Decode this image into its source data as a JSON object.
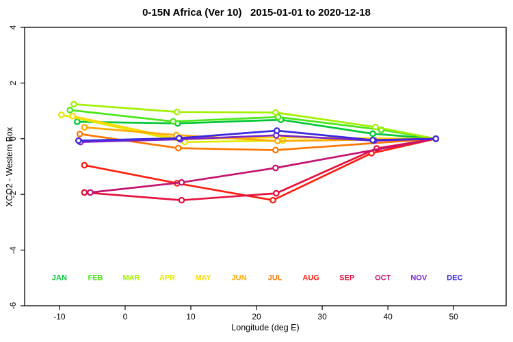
{
  "header": {
    "title": "0-15N Africa (Ver 10)   2015-01-01 to 2020-12-18"
  },
  "chart_data": {
    "type": "line",
    "title": "0-15N Africa (Ver 10)   2015-01-01 to 2020-12-18",
    "xlabel": "Longitude (deg E)",
    "ylabel": "XCO2 - Western Box",
    "x_ticks": [
      -10,
      0,
      10,
      20,
      30,
      40,
      50
    ],
    "y_ticks": [
      -6,
      -4,
      -2,
      0,
      2,
      4
    ],
    "xlim": [
      -15.3,
      58.0
    ],
    "ylim": [
      -6.0,
      4.0
    ],
    "grid": false,
    "marker_style": "open-circle",
    "legend": {
      "position": "bottom-inside",
      "y_value": -5.08,
      "start_x": -10.0,
      "step_x": 5.47
    },
    "series": [
      {
        "name": "JAN",
        "color": "#00C832",
        "points": [
          [
            -7.3,
            0.61
          ],
          [
            8.0,
            0.55
          ],
          [
            23.7,
            0.68
          ],
          [
            37.7,
            0.18
          ],
          [
            47.3,
            0.0
          ]
        ]
      },
      {
        "name": "FEB",
        "color": "#4BE619",
        "points": [
          [
            -8.4,
            1.03
          ],
          [
            7.3,
            0.62
          ],
          [
            23.3,
            0.78
          ],
          [
            39.0,
            0.32
          ],
          [
            47.3,
            0.0
          ]
        ]
      },
      {
        "name": "MAR",
        "color": "#A3F000",
        "points": [
          [
            -7.8,
            1.24
          ],
          [
            7.9,
            0.96
          ],
          [
            22.9,
            0.94
          ],
          [
            38.1,
            0.42
          ],
          [
            47.3,
            0.0
          ]
        ]
      },
      {
        "name": "APR",
        "color": "#E3E800",
        "points": [
          [
            -9.7,
            0.86
          ],
          [
            9.1,
            -0.12
          ],
          [
            24.0,
            -0.07
          ],
          [
            47.3,
            0.0
          ]
        ]
      },
      {
        "name": "MAY",
        "color": "#FFD900",
        "points": [
          [
            -8.0,
            0.81
          ],
          [
            8.4,
            -0.02
          ],
          [
            23.4,
            0.05
          ],
          [
            47.3,
            0.0
          ]
        ]
      },
      {
        "name": "JUN",
        "color": "#FFA800",
        "points": [
          [
            -6.2,
            0.41
          ],
          [
            7.8,
            0.13
          ],
          [
            23.2,
            -0.08
          ],
          [
            47.3,
            0.0
          ]
        ]
      },
      {
        "name": "JUL",
        "color": "#FF7600",
        "points": [
          [
            -6.9,
            0.17
          ],
          [
            8.1,
            -0.34
          ],
          [
            22.9,
            -0.41
          ],
          [
            47.3,
            0.0
          ]
        ]
      },
      {
        "name": "AUG",
        "color": "#FF1E0F",
        "points": [
          [
            -6.2,
            -0.95
          ],
          [
            7.9,
            -1.6
          ],
          [
            22.5,
            -2.21
          ],
          [
            37.5,
            -0.52
          ],
          [
            47.3,
            0.0
          ]
        ]
      },
      {
        "name": "SEP",
        "color": "#E60F3C",
        "points": [
          [
            -6.2,
            -1.93
          ],
          [
            8.6,
            -2.21
          ],
          [
            23.0,
            -1.96
          ],
          [
            38.3,
            -0.35
          ],
          [
            47.3,
            0.0
          ]
        ]
      },
      {
        "name": "OCT",
        "color": "#C41272",
        "points": [
          [
            -5.3,
            -1.93
          ],
          [
            8.6,
            -1.57
          ],
          [
            22.9,
            -1.05
          ],
          [
            47.3,
            0.0
          ]
        ]
      },
      {
        "name": "NOV",
        "color": "#7C26C8",
        "points": [
          [
            -6.8,
            -0.12
          ],
          [
            8.4,
            -0.02
          ],
          [
            23.0,
            0.12
          ],
          [
            37.9,
            -0.07
          ],
          [
            47.3,
            0.0
          ]
        ]
      },
      {
        "name": "DEC",
        "color": "#3A28E0",
        "points": [
          [
            -7.1,
            -0.07
          ],
          [
            8.2,
            0.02
          ],
          [
            23.1,
            0.29
          ],
          [
            37.7,
            -0.05
          ],
          [
            47.3,
            0.0
          ]
        ]
      }
    ]
  }
}
